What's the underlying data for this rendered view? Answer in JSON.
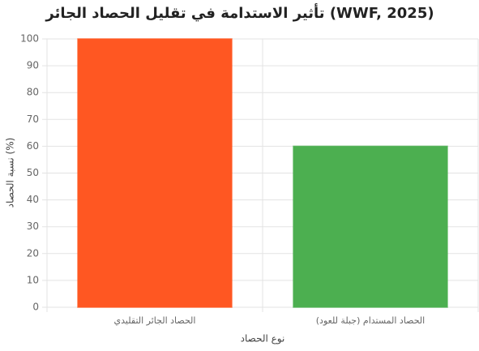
{
  "chart_data": {
    "type": "bar",
    "title": "تأثير الاستدامة في تقليل الحصاد الجائر (WWF, 2025)",
    "x_label": "نوع الحصاد",
    "y_label": "نسبة الحصاد (%)",
    "categories": [
      "الحصاد الجائر التقليدي",
      "الحصاد المستدام (جبلة للعود)"
    ],
    "values": [
      100,
      60
    ],
    "colors": [
      "#ff5722",
      "#4caf50"
    ],
    "ylim": [
      0,
      100
    ],
    "yticks": [
      0,
      10,
      20,
      30,
      40,
      50,
      60,
      70,
      80,
      90,
      100
    ],
    "grid": true
  }
}
